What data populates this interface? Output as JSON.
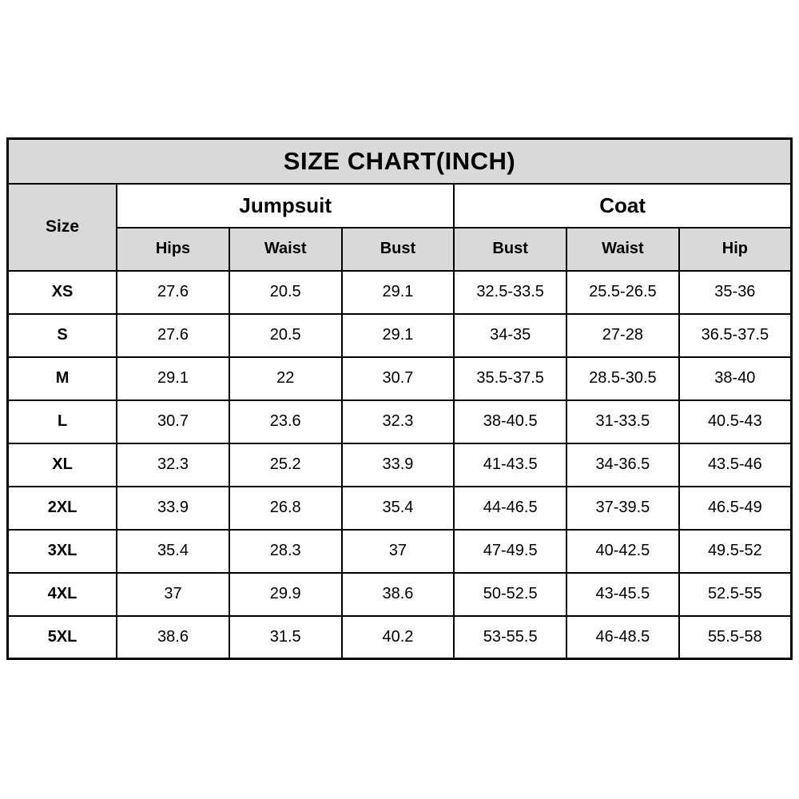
{
  "title": "SIZE CHART(INCH)",
  "colors": {
    "header_bg": "#d9d9d9",
    "body_bg": "#ffffff",
    "border": "#000000",
    "text": "#000000"
  },
  "table": {
    "corner_label": "Size",
    "groups": [
      {
        "label": "Jumpsuit"
      },
      {
        "label": "Coat"
      }
    ],
    "sub_headers": [
      "Hips",
      "Waist",
      "Bust",
      "Bust",
      "Waist",
      "Hip"
    ]
  },
  "chart_data": {
    "type": "table",
    "title": "SIZE CHART(INCH)",
    "unit": "inch",
    "row_header": "Size",
    "column_groups": [
      {
        "label": "Jumpsuit",
        "columns": [
          "Hips",
          "Waist",
          "Bust"
        ]
      },
      {
        "label": "Coat",
        "columns": [
          "Bust",
          "Waist",
          "Hip"
        ]
      }
    ],
    "rows": [
      {
        "size": "XS",
        "values": [
          "27.6",
          "20.5",
          "29.1",
          "32.5-33.5",
          "25.5-26.5",
          "35-36"
        ]
      },
      {
        "size": "S",
        "values": [
          "27.6",
          "20.5",
          "29.1",
          "34-35",
          "27-28",
          "36.5-37.5"
        ]
      },
      {
        "size": "M",
        "values": [
          "29.1",
          "22",
          "30.7",
          "35.5-37.5",
          "28.5-30.5",
          "38-40"
        ]
      },
      {
        "size": "L",
        "values": [
          "30.7",
          "23.6",
          "32.3",
          "38-40.5",
          "31-33.5",
          "40.5-43"
        ]
      },
      {
        "size": "XL",
        "values": [
          "32.3",
          "25.2",
          "33.9",
          "41-43.5",
          "34-36.5",
          "43.5-46"
        ]
      },
      {
        "size": "2XL",
        "values": [
          "33.9",
          "26.8",
          "35.4",
          "44-46.5",
          "37-39.5",
          "46.5-49"
        ]
      },
      {
        "size": "3XL",
        "values": [
          "35.4",
          "28.3",
          "37",
          "47-49.5",
          "40-42.5",
          "49.5-52"
        ]
      },
      {
        "size": "4XL",
        "values": [
          "37",
          "29.9",
          "38.6",
          "50-52.5",
          "43-45.5",
          "52.5-55"
        ]
      },
      {
        "size": "5XL",
        "values": [
          "38.6",
          "31.5",
          "40.2",
          "53-55.5",
          "46-48.5",
          "55.5-58"
        ]
      }
    ]
  }
}
